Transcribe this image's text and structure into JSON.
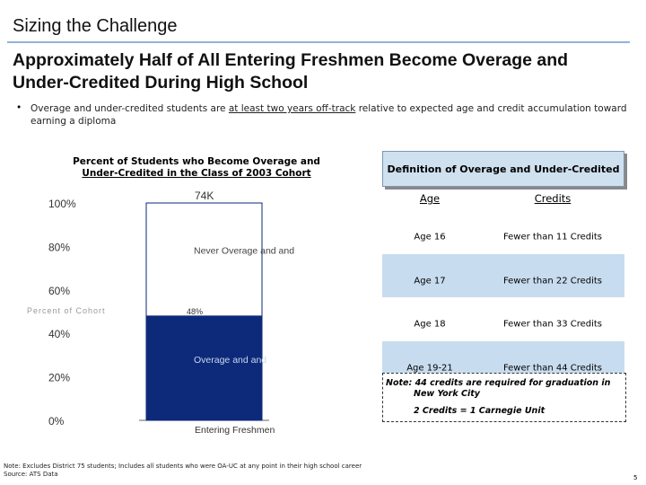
{
  "slide": {
    "section_title": "Sizing the Challenge",
    "headline_line1": "Approximately Half of All Entering Freshmen Become Overage and",
    "headline_line2": "Under-Credited During High School",
    "bullet_char": "•",
    "bullet_pre": "Overage and under-credited students are ",
    "bullet_underlined": "at least two years off-track",
    "bullet_post": " relative to expected age and credit accumulation toward earning a diploma",
    "footer_line1": "Note: Excludes District 75 students; Includes all students who were OA-UC at any point in their high school career",
    "footer_line2": "Source: ATS Data",
    "page_number": "5"
  },
  "chart_data": {
    "type": "bar",
    "stacked": true,
    "title_line1": "Percent of Students who Become Overage and",
    "title_line2": "Under-Credited in the Class of 2003 Cohort",
    "ylabel": "Percent of Cohort",
    "categories": [
      "Entering Freshmen"
    ],
    "ylim": [
      0,
      100
    ],
    "yticks": [
      "0%",
      "20%",
      "40%",
      "60%",
      "80%",
      "100%"
    ],
    "total_label": "74K",
    "series": [
      {
        "name": "Overage and Under-Credited",
        "values": [
          48
        ],
        "label": "48%",
        "color": "#0d2a7a"
      },
      {
        "name": "Never Overage and Under-Credited",
        "values": [
          52
        ],
        "label": "",
        "color": "#ffffff"
      }
    ]
  },
  "definition": {
    "header": "Definition of Overage and Under-Credited",
    "col_age": "Age",
    "col_credits": "Credits",
    "rows": [
      {
        "age": "Age 16",
        "credits": "Fewer than 11 Credits"
      },
      {
        "age": "Age 17",
        "credits": "Fewer than 22 Credits"
      },
      {
        "age": "Age 18",
        "credits": "Fewer than 33 Credits"
      },
      {
        "age": "Age 19-21",
        "credits": "Fewer than 44 Credits"
      }
    ],
    "note_line1": "Note: 44 credits are required for graduation in",
    "note_line2": "New York City",
    "note_line3": "2 Credits = 1 Carnegie Unit"
  }
}
